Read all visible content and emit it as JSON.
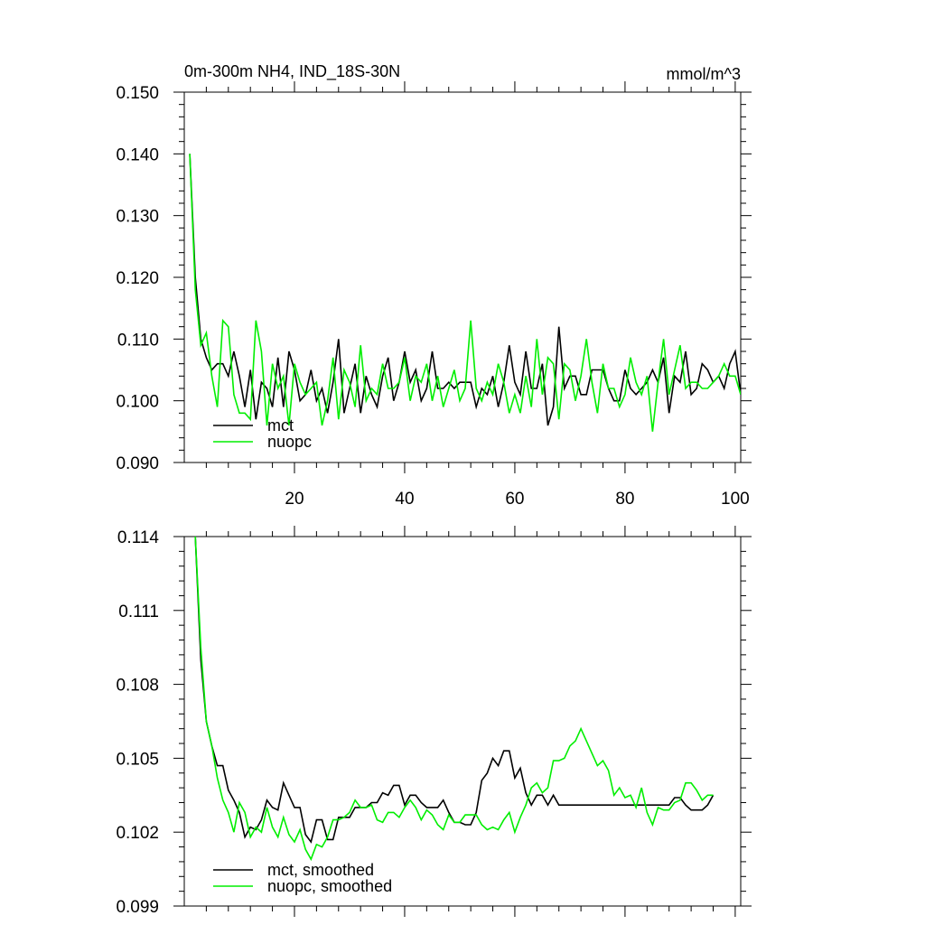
{
  "title": "0m-300m NH4, IND_18S-30N",
  "units": "mmol/m^3",
  "colors": {
    "mct": "#000000",
    "nuopc": "#00ee00"
  },
  "chart_data": [
    {
      "type": "line",
      "title": "0m-300m NH4, IND_18S-30N",
      "units": "mmol/m^3",
      "xlim": [
        0,
        101
      ],
      "ylim": [
        0.09,
        0.15
      ],
      "yticks": [
        "0.090",
        "0.100",
        "0.110",
        "0.120",
        "0.130",
        "0.140",
        "0.150"
      ],
      "xticks": [
        "20",
        "40",
        "60",
        "80",
        "100"
      ],
      "legend": "bottom-left",
      "grid": false,
      "series": [
        {
          "name": "mct",
          "color": "#000000",
          "values": [
            0.14,
            0.12,
            0.11,
            0.107,
            0.105,
            0.106,
            0.106,
            0.104,
            0.108,
            0.104,
            0.099,
            0.105,
            0.097,
            0.103,
            0.102,
            0.099,
            0.107,
            0.099,
            0.108,
            0.105,
            0.1,
            0.101,
            0.105,
            0.1,
            0.102,
            0.098,
            0.103,
            0.11,
            0.098,
            0.102,
            0.106,
            0.098,
            0.104,
            0.101,
            0.099,
            0.104,
            0.107,
            0.1,
            0.103,
            0.108,
            0.103,
            0.105,
            0.1,
            0.102,
            0.108,
            0.102,
            0.102,
            0.103,
            0.102,
            0.103,
            0.103,
            0.103,
            0.099,
            0.102,
            0.101,
            0.104,
            0.099,
            0.103,
            0.109,
            0.103,
            0.101,
            0.108,
            0.102,
            0.102,
            0.106,
            0.096,
            0.099,
            0.112,
            0.102,
            0.104,
            0.104,
            0.101,
            0.101,
            0.105,
            0.105,
            0.105,
            0.102,
            0.1,
            0.1,
            0.105,
            0.102,
            0.101,
            0.102,
            0.103,
            0.105,
            0.103,
            0.107,
            0.098,
            0.104,
            0.103,
            0.108,
            0.101,
            0.102,
            0.106,
            0.105,
            0.103,
            0.104,
            0.102,
            0.106,
            0.108,
            0.101
          ]
        },
        {
          "name": "nuopc",
          "color": "#00ee00",
          "values": [
            0.14,
            0.118,
            0.109,
            0.111,
            0.104,
            0.099,
            0.113,
            0.112,
            0.101,
            0.098,
            0.098,
            0.097,
            0.113,
            0.108,
            0.096,
            0.106,
            0.102,
            0.104,
            0.096,
            0.106,
            0.103,
            0.101,
            0.102,
            0.103,
            0.096,
            0.1,
            0.107,
            0.097,
            0.105,
            0.103,
            0.099,
            0.109,
            0.1,
            0.102,
            0.101,
            0.106,
            0.102,
            0.102,
            0.103,
            0.107,
            0.1,
            0.104,
            0.103,
            0.106,
            0.1,
            0.104,
            0.099,
            0.102,
            0.105,
            0.1,
            0.102,
            0.113,
            0.102,
            0.1,
            0.103,
            0.101,
            0.106,
            0.103,
            0.098,
            0.101,
            0.098,
            0.104,
            0.099,
            0.11,
            0.101,
            0.107,
            0.106,
            0.097,
            0.106,
            0.105,
            0.1,
            0.104,
            0.11,
            0.103,
            0.098,
            0.106,
            0.102,
            0.102,
            0.099,
            0.101,
            0.107,
            0.103,
            0.101,
            0.104,
            0.095,
            0.103,
            0.11,
            0.101,
            0.105,
            0.109,
            0.102,
            0.103,
            0.103,
            0.102,
            0.102,
            0.103,
            0.104,
            0.106,
            0.104,
            0.104,
            0.101
          ]
        }
      ]
    },
    {
      "type": "line",
      "xlim": [
        0,
        101
      ],
      "ylim": [
        0.099,
        0.114
      ],
      "yticks": [
        "0.099",
        "0.102",
        "0.105",
        "0.108",
        "0.111",
        "0.114"
      ],
      "legend": "bottom-left",
      "grid": false,
      "series": [
        {
          "name": "mct, smoothed",
          "color": "#000000",
          "values": [
            0.117,
            0.114,
            0.109,
            0.1065,
            0.1055,
            0.1047,
            0.1047,
            0.1037,
            0.1033,
            0.1028,
            0.1018,
            0.1022,
            0.1021,
            0.1025,
            0.1033,
            0.103,
            0.1029,
            0.104,
            0.1035,
            0.103,
            0.103,
            0.1019,
            0.1016,
            0.1025,
            0.1025,
            0.1017,
            0.1017,
            0.1026,
            0.1026,
            0.1026,
            0.103,
            0.103,
            0.103,
            0.1032,
            0.1032,
            0.1036,
            0.1035,
            0.1039,
            0.1039,
            0.1031,
            0.1035,
            0.1035,
            0.1032,
            0.103,
            0.103,
            0.103,
            0.1033,
            0.1028,
            0.1024,
            0.1024,
            0.1023,
            0.1023,
            0.1028,
            0.1041,
            0.1044,
            0.105,
            0.1047,
            0.1053,
            0.1053,
            0.1042,
            0.1046,
            0.1036,
            0.1031,
            0.1035,
            0.1035,
            0.1031,
            0.1035,
            0.1031,
            0.1031,
            0.1031,
            0.1031,
            0.1031,
            0.1031,
            0.1031,
            0.1031,
            0.1031,
            0.1031,
            0.1031,
            0.1031,
            0.1031,
            0.1031,
            0.1031,
            0.1031,
            0.1031,
            0.1031,
            0.1031,
            0.1031,
            0.1031,
            0.1034,
            0.1034,
            0.1031,
            0.1029,
            0.1029,
            0.1029,
            0.1031,
            0.1035
          ]
        },
        {
          "name": "nuopc, smoothed",
          "color": "#00ee00",
          "values": [
            0.117,
            0.114,
            0.1095,
            0.1065,
            0.1055,
            0.1042,
            0.1033,
            0.1028,
            0.102,
            0.1032,
            0.1028,
            0.1018,
            0.1022,
            0.102,
            0.103,
            0.1022,
            0.1018,
            0.1026,
            0.1019,
            0.1016,
            0.1021,
            0.1013,
            0.1009,
            0.1015,
            0.1014,
            0.1018,
            0.1025,
            0.1025,
            0.1026,
            0.1028,
            0.1033,
            0.103,
            0.103,
            0.1031,
            0.1025,
            0.1024,
            0.1028,
            0.1028,
            0.1026,
            0.103,
            0.1033,
            0.103,
            0.1025,
            0.1029,
            0.1027,
            0.1023,
            0.1021,
            0.1027,
            0.1024,
            0.1024,
            0.1027,
            0.1027,
            0.1027,
            0.1023,
            0.1021,
            0.1022,
            0.1021,
            0.1025,
            0.1028,
            0.102,
            0.1026,
            0.1031,
            0.1038,
            0.104,
            0.1036,
            0.1038,
            0.1049,
            0.1049,
            0.105,
            0.1055,
            0.1057,
            0.1062,
            0.1057,
            0.1052,
            0.1047,
            0.1049,
            0.1045,
            0.1035,
            0.1038,
            0.1034,
            0.1035,
            0.103,
            0.1038,
            0.1028,
            0.1023,
            0.103,
            0.1029,
            0.1029,
            0.1032,
            0.1033,
            0.104,
            0.104,
            0.1037,
            0.1033,
            0.1035,
            0.1035
          ]
        }
      ]
    }
  ]
}
